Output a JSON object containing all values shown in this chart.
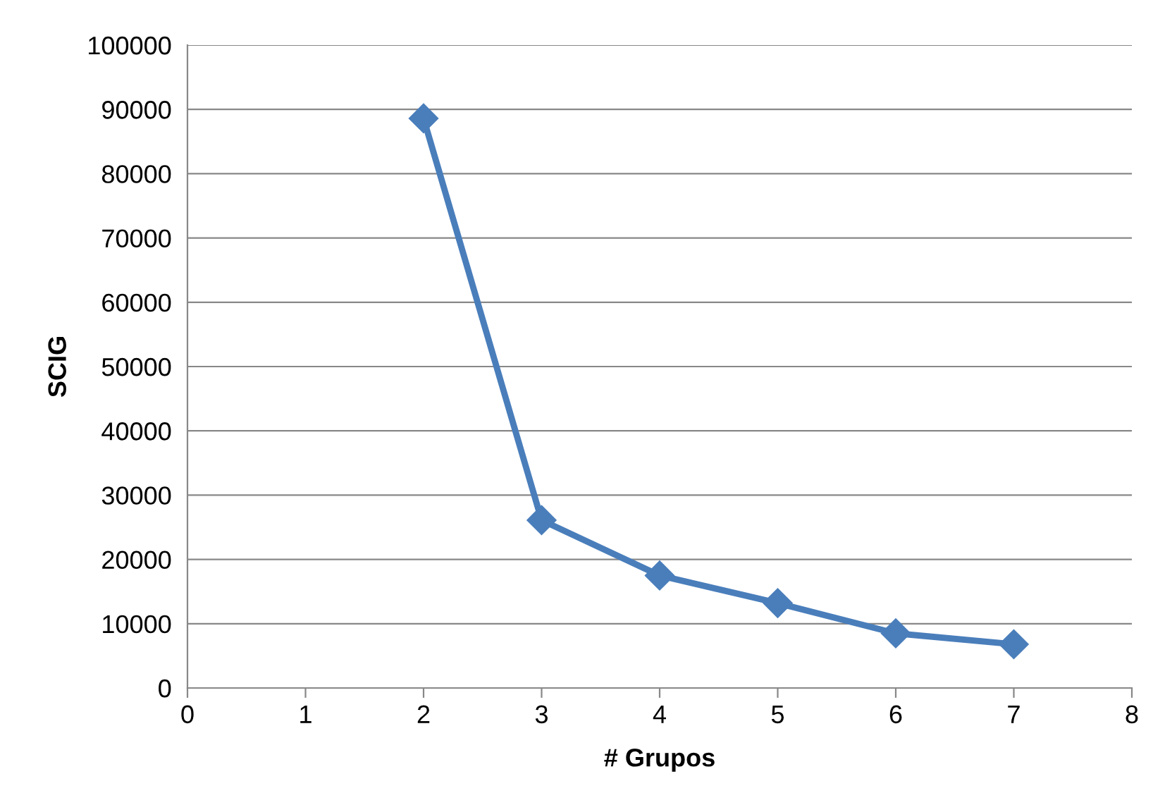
{
  "chart_data": {
    "type": "line",
    "xlabel": "# Grupos",
    "ylabel": "SCIG",
    "x": [
      2,
      3,
      4,
      5,
      6,
      7
    ],
    "series": [
      {
        "color": "#4a7ebb",
        "values": [
          88600,
          26100,
          17500,
          13200,
          8500,
          6800
        ]
      }
    ],
    "xlim": [
      0,
      8
    ],
    "xticks": [
      0,
      1,
      2,
      3,
      4,
      5,
      6,
      7,
      8
    ],
    "ylim": [
      0,
      100000
    ],
    "yticks": [
      0,
      10000,
      20000,
      30000,
      40000,
      50000,
      60000,
      70000,
      80000,
      90000,
      100000
    ],
    "grid": "y",
    "marker": "diamond",
    "line_style": "solid"
  }
}
